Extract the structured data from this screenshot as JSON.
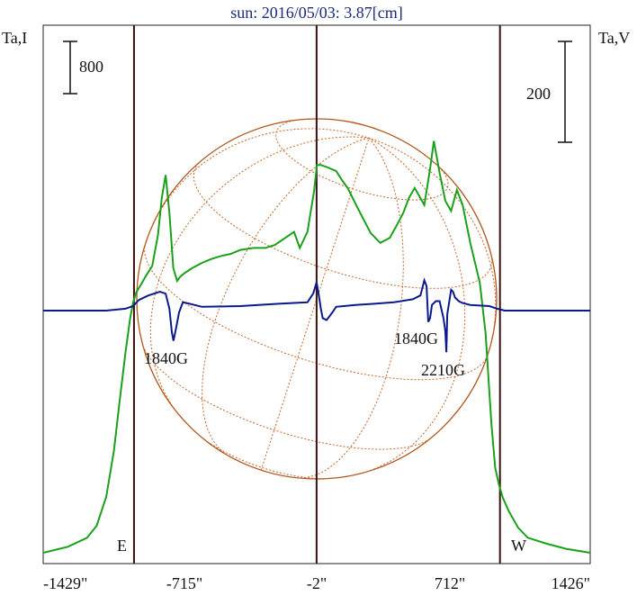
{
  "chart_data": {
    "type": "line",
    "title": "sun: 2016/05/03: 3.87[cm]",
    "left_axis_label": "Ta,I",
    "right_axis_label": "Ta,V",
    "xlim": [
      -1429,
      1426
    ],
    "x_tick_labels": [
      {
        "x": -1429,
        "label": "-1429\""
      },
      {
        "x": -715,
        "label": "-715\""
      },
      {
        "x": -2,
        "label": "-2\""
      },
      {
        "x": 712,
        "label": "712\""
      },
      {
        "x": 1426,
        "label": "1426\""
      }
    ],
    "scale_bars": [
      {
        "axis": "left",
        "value": "800"
      },
      {
        "axis": "right",
        "value": "200"
      }
    ],
    "limb_markers": [
      {
        "name": "E",
        "x": -955
      },
      {
        "name": "W",
        "x": 955
      }
    ],
    "center_line_x": -2,
    "annotations": [
      {
        "text": "1840G",
        "x": -749,
        "series": "Ta,V"
      },
      {
        "text": "1840G",
        "x": 581,
        "series": "Ta,V"
      },
      {
        "text": "2210G",
        "x": 675,
        "series": "Ta,V"
      }
    ],
    "series": [
      {
        "name": "Ta,I",
        "color": "#1aa01a",
        "units": "relative, left scale bar = 800",
        "x": [
          -1429,
          -1300,
          -1200,
          -1150,
          -1100,
          -1060,
          -1030,
          -1000,
          -975,
          -960,
          -945,
          -920,
          -890,
          -860,
          -830,
          -810,
          -790,
          -770,
          -750,
          -730,
          -715,
          -690,
          -650,
          -600,
          -550,
          -500,
          -450,
          -400,
          -330,
          -270,
          -220,
          -120,
          -90,
          -50,
          -15,
          0,
          20,
          50,
          100,
          130,
          160,
          220,
          280,
          330,
          380,
          420,
          450,
          480,
          510,
          560,
          590,
          610,
          640,
          670,
          700,
          730,
          760,
          800,
          850,
          880,
          910,
          930,
          950,
          970,
          1000,
          1050,
          1100,
          1200,
          1300,
          1426
        ],
        "y": [
          0,
          60,
          150,
          270,
          560,
          1020,
          1520,
          2000,
          2350,
          2500,
          2600,
          2680,
          2780,
          2870,
          3180,
          3550,
          3780,
          3400,
          2850,
          2720,
          2760,
          2800,
          2850,
          2900,
          2940,
          2970,
          2990,
          3030,
          3050,
          3050,
          3080,
          3210,
          3050,
          3210,
          3620,
          3880,
          3880,
          3860,
          3820,
          3730,
          3650,
          3420,
          3200,
          3100,
          3150,
          3290,
          3400,
          3550,
          3650,
          3480,
          3840,
          4120,
          3800,
          3520,
          3420,
          3630,
          3480,
          3100,
          2700,
          2200,
          1300,
          850,
          680,
          550,
          420,
          250,
          150,
          90,
          40,
          0
        ]
      },
      {
        "name": "Ta,V",
        "color": "#0a1a8a",
        "units": "relative, right scale bar = 200",
        "x": [
          -1429,
          -1300,
          -1200,
          -1100,
          -1000,
          -960,
          -930,
          -880,
          -820,
          -790,
          -770,
          -758,
          -749,
          -735,
          -720,
          -700,
          -680,
          -640,
          -600,
          -400,
          -200,
          -50,
          -20,
          -2,
          10,
          20,
          30,
          50,
          80,
          100,
          200,
          300,
          400,
          500,
          540,
          560,
          572,
          581,
          590,
          600,
          620,
          640,
          660,
          670,
          675,
          680,
          700,
          710,
          720,
          740,
          760,
          800,
          900,
          940,
          980,
          1050,
          1200,
          1426
        ],
        "y": [
          0,
          0,
          0,
          0,
          5,
          12,
          28,
          40,
          50,
          45,
          5,
          -55,
          -80,
          -45,
          -5,
          22,
          20,
          15,
          10,
          12,
          18,
          22,
          45,
          75,
          40,
          5,
          -20,
          -25,
          -5,
          10,
          15,
          18,
          22,
          30,
          40,
          80,
          65,
          -30,
          -20,
          15,
          25,
          25,
          -20,
          -55,
          -110,
          -10,
          55,
          50,
          35,
          25,
          20,
          15,
          12,
          5,
          0,
          0,
          0,
          0
        ]
      }
    ]
  }
}
